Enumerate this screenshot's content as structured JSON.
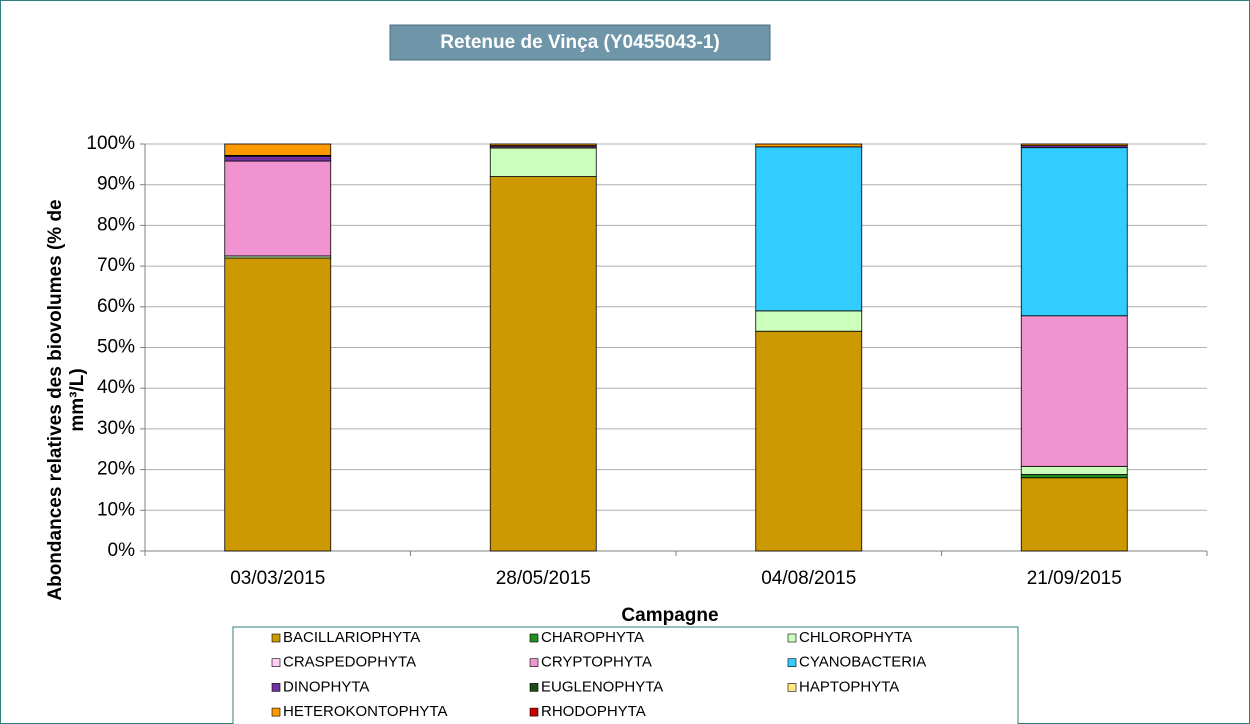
{
  "chart_data": {
    "type": "stacked_bar",
    "title": "Retenue de Vinça (Y0455043-1)",
    "x_label": "Campagne",
    "y_label": [
      "Abondances relatives des biovolumes (% de",
      "mm³/L)"
    ],
    "categories": [
      "03/03/2015",
      "28/05/2015",
      "04/08/2015",
      "21/09/2015"
    ],
    "ylim": [
      0,
      100
    ],
    "yticks": [
      {
        "value": 0,
        "label": "0%"
      },
      {
        "value": 10,
        "label": "10%"
      },
      {
        "value": 20,
        "label": "20%"
      },
      {
        "value": 30,
        "label": "30%"
      },
      {
        "value": 40,
        "label": "40%"
      },
      {
        "value": 50,
        "label": "50%"
      },
      {
        "value": 60,
        "label": "60%"
      },
      {
        "value": 70,
        "label": "70%"
      },
      {
        "value": 80,
        "label": "80%"
      },
      {
        "value": 90,
        "label": "90%"
      },
      {
        "value": 100,
        "label": "100%"
      }
    ],
    "grid": true,
    "legend": "bottom",
    "series": [
      {
        "name": "BACILLARIOPHYTA",
        "color": "#cc9900",
        "values": [
          72,
          92,
          54,
          18
        ]
      },
      {
        "name": "CHAROPHYTA",
        "color": "#1f8f1f",
        "values": [
          0,
          0,
          0,
          0.8
        ]
      },
      {
        "name": "CHLOROPHYTA",
        "color": "#ccffbb",
        "values": [
          0.5,
          7,
          5,
          2
        ]
      },
      {
        "name": "CRASPEDOPHYTA",
        "color": "#ffccf2",
        "values": [
          0,
          0,
          0,
          0
        ]
      },
      {
        "name": "CRYPTOPHYTA",
        "color": "#f093d0",
        "values": [
          23.3,
          0.3,
          0,
          37
        ]
      },
      {
        "name": "CYANOBACTERIA",
        "color": "#33ccff",
        "values": [
          0,
          0,
          40.3,
          41.3
        ]
      },
      {
        "name": "DINOPHYTA",
        "color": "#7030a0",
        "values": [
          1.2,
          0.3,
          0,
          0.5
        ]
      },
      {
        "name": "EUGLENOPHYTA",
        "color": "#1a4d1a",
        "values": [
          0,
          0,
          0,
          0
        ]
      },
      {
        "name": "HAPTOPHYTA",
        "color": "#ffe680",
        "values": [
          0.2,
          0,
          0,
          0
        ]
      },
      {
        "name": "HETEROKONTOPHYTA",
        "color": "#ff9900",
        "values": [
          2.8,
          0.4,
          0.7,
          0.4
        ]
      },
      {
        "name": "RHODOPHYTA",
        "color": "#cc0000",
        "values": [
          0,
          0,
          0,
          0
        ]
      }
    ]
  }
}
